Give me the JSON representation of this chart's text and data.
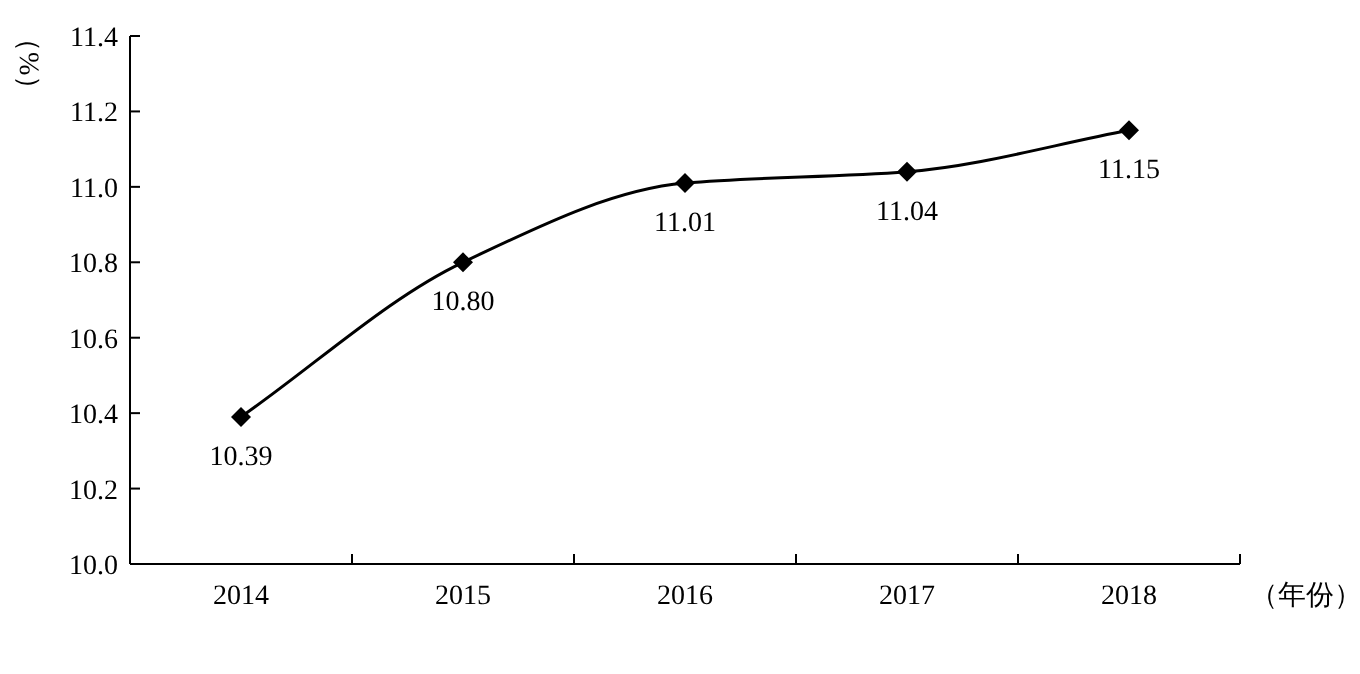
{
  "chart_data": {
    "type": "line",
    "xlabel": "（年份）",
    "ylabel": "（%）",
    "categories": [
      "2014",
      "2015",
      "2016",
      "2017",
      "2018"
    ],
    "series": [
      {
        "color": "#000000",
        "values": [
          10.39,
          10.8,
          11.01,
          11.04,
          11.15
        ],
        "value_labels": [
          "10.39",
          "10.80",
          "11.01",
          "11.04",
          "11.15"
        ]
      }
    ],
    "ylim": [
      10.0,
      11.4
    ],
    "yticks": [
      "10.0",
      "10.2",
      "10.4",
      "10.6",
      "10.8",
      "11.0",
      "11.2",
      "11.4"
    ],
    "marker": "diamond",
    "line_style": "solid",
    "grid": false
  }
}
